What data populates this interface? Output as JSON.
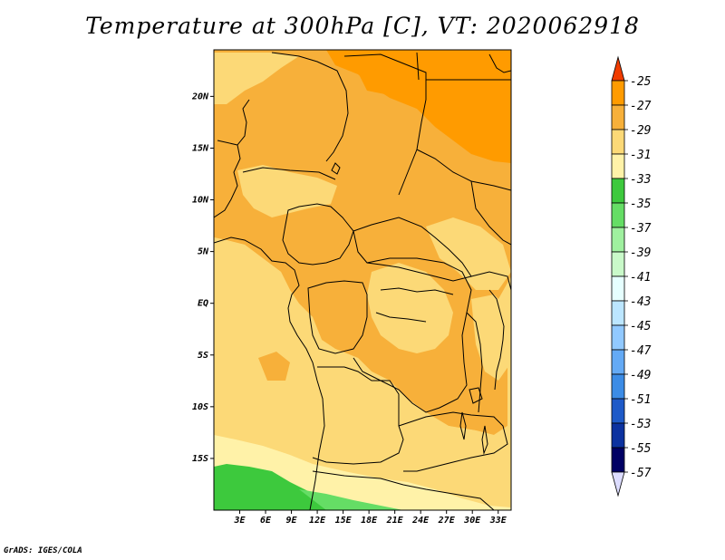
{
  "title": "Temperature at 300hPa [C], VT: 2020062918",
  "credit": "GrADS: IGES/COLA",
  "map": {
    "lon_range": [
      0,
      34.5
    ],
    "lat_range": [
      -20,
      24.5
    ],
    "x_ticks": [
      "3E",
      "6E",
      "9E",
      "12E",
      "15E",
      "18E",
      "21E",
      "24E",
      "27E",
      "30E",
      "33E"
    ],
    "x_tick_values": [
      3,
      6,
      9,
      12,
      15,
      18,
      21,
      24,
      27,
      30,
      33
    ],
    "y_ticks": [
      "20N",
      "15N",
      "10N",
      "5N",
      "EQ",
      "5S",
      "10S",
      "15S"
    ],
    "y_tick_values": [
      20,
      15,
      10,
      5,
      0,
      -5,
      -10,
      -15
    ]
  },
  "colorbar": {
    "labels": [
      "-25",
      "-27",
      "-29",
      "-31",
      "-33",
      "-35",
      "-37",
      "-39",
      "-41",
      "-43",
      "-45",
      "-47",
      "-49",
      "-51",
      "-53",
      "-55",
      "-57"
    ],
    "colors": [
      "#ff5a00",
      "#ff9b00",
      "#f7b03a",
      "#fcd977",
      "#fff2a8",
      "#3dc93d",
      "#65dd65",
      "#9ff09f",
      "#c9f9c9",
      "#e6ffff",
      "#bce6ff",
      "#91c9ff",
      "#64aaf5",
      "#3c8ce6",
      "#1e5ac8",
      "#0c32a0",
      "#000064"
    ],
    "top_arrow_color": "#f03c00",
    "bottom_arrow_color": "#dcdcff"
  },
  "field_colors": {
    "very_warm": "#ff9b00",
    "warm": "#f7b03a",
    "mid": "#fcd977",
    "cool": "#fff2a8",
    "cold": "#3dc93d",
    "cold_edge": "#65dd65"
  }
}
